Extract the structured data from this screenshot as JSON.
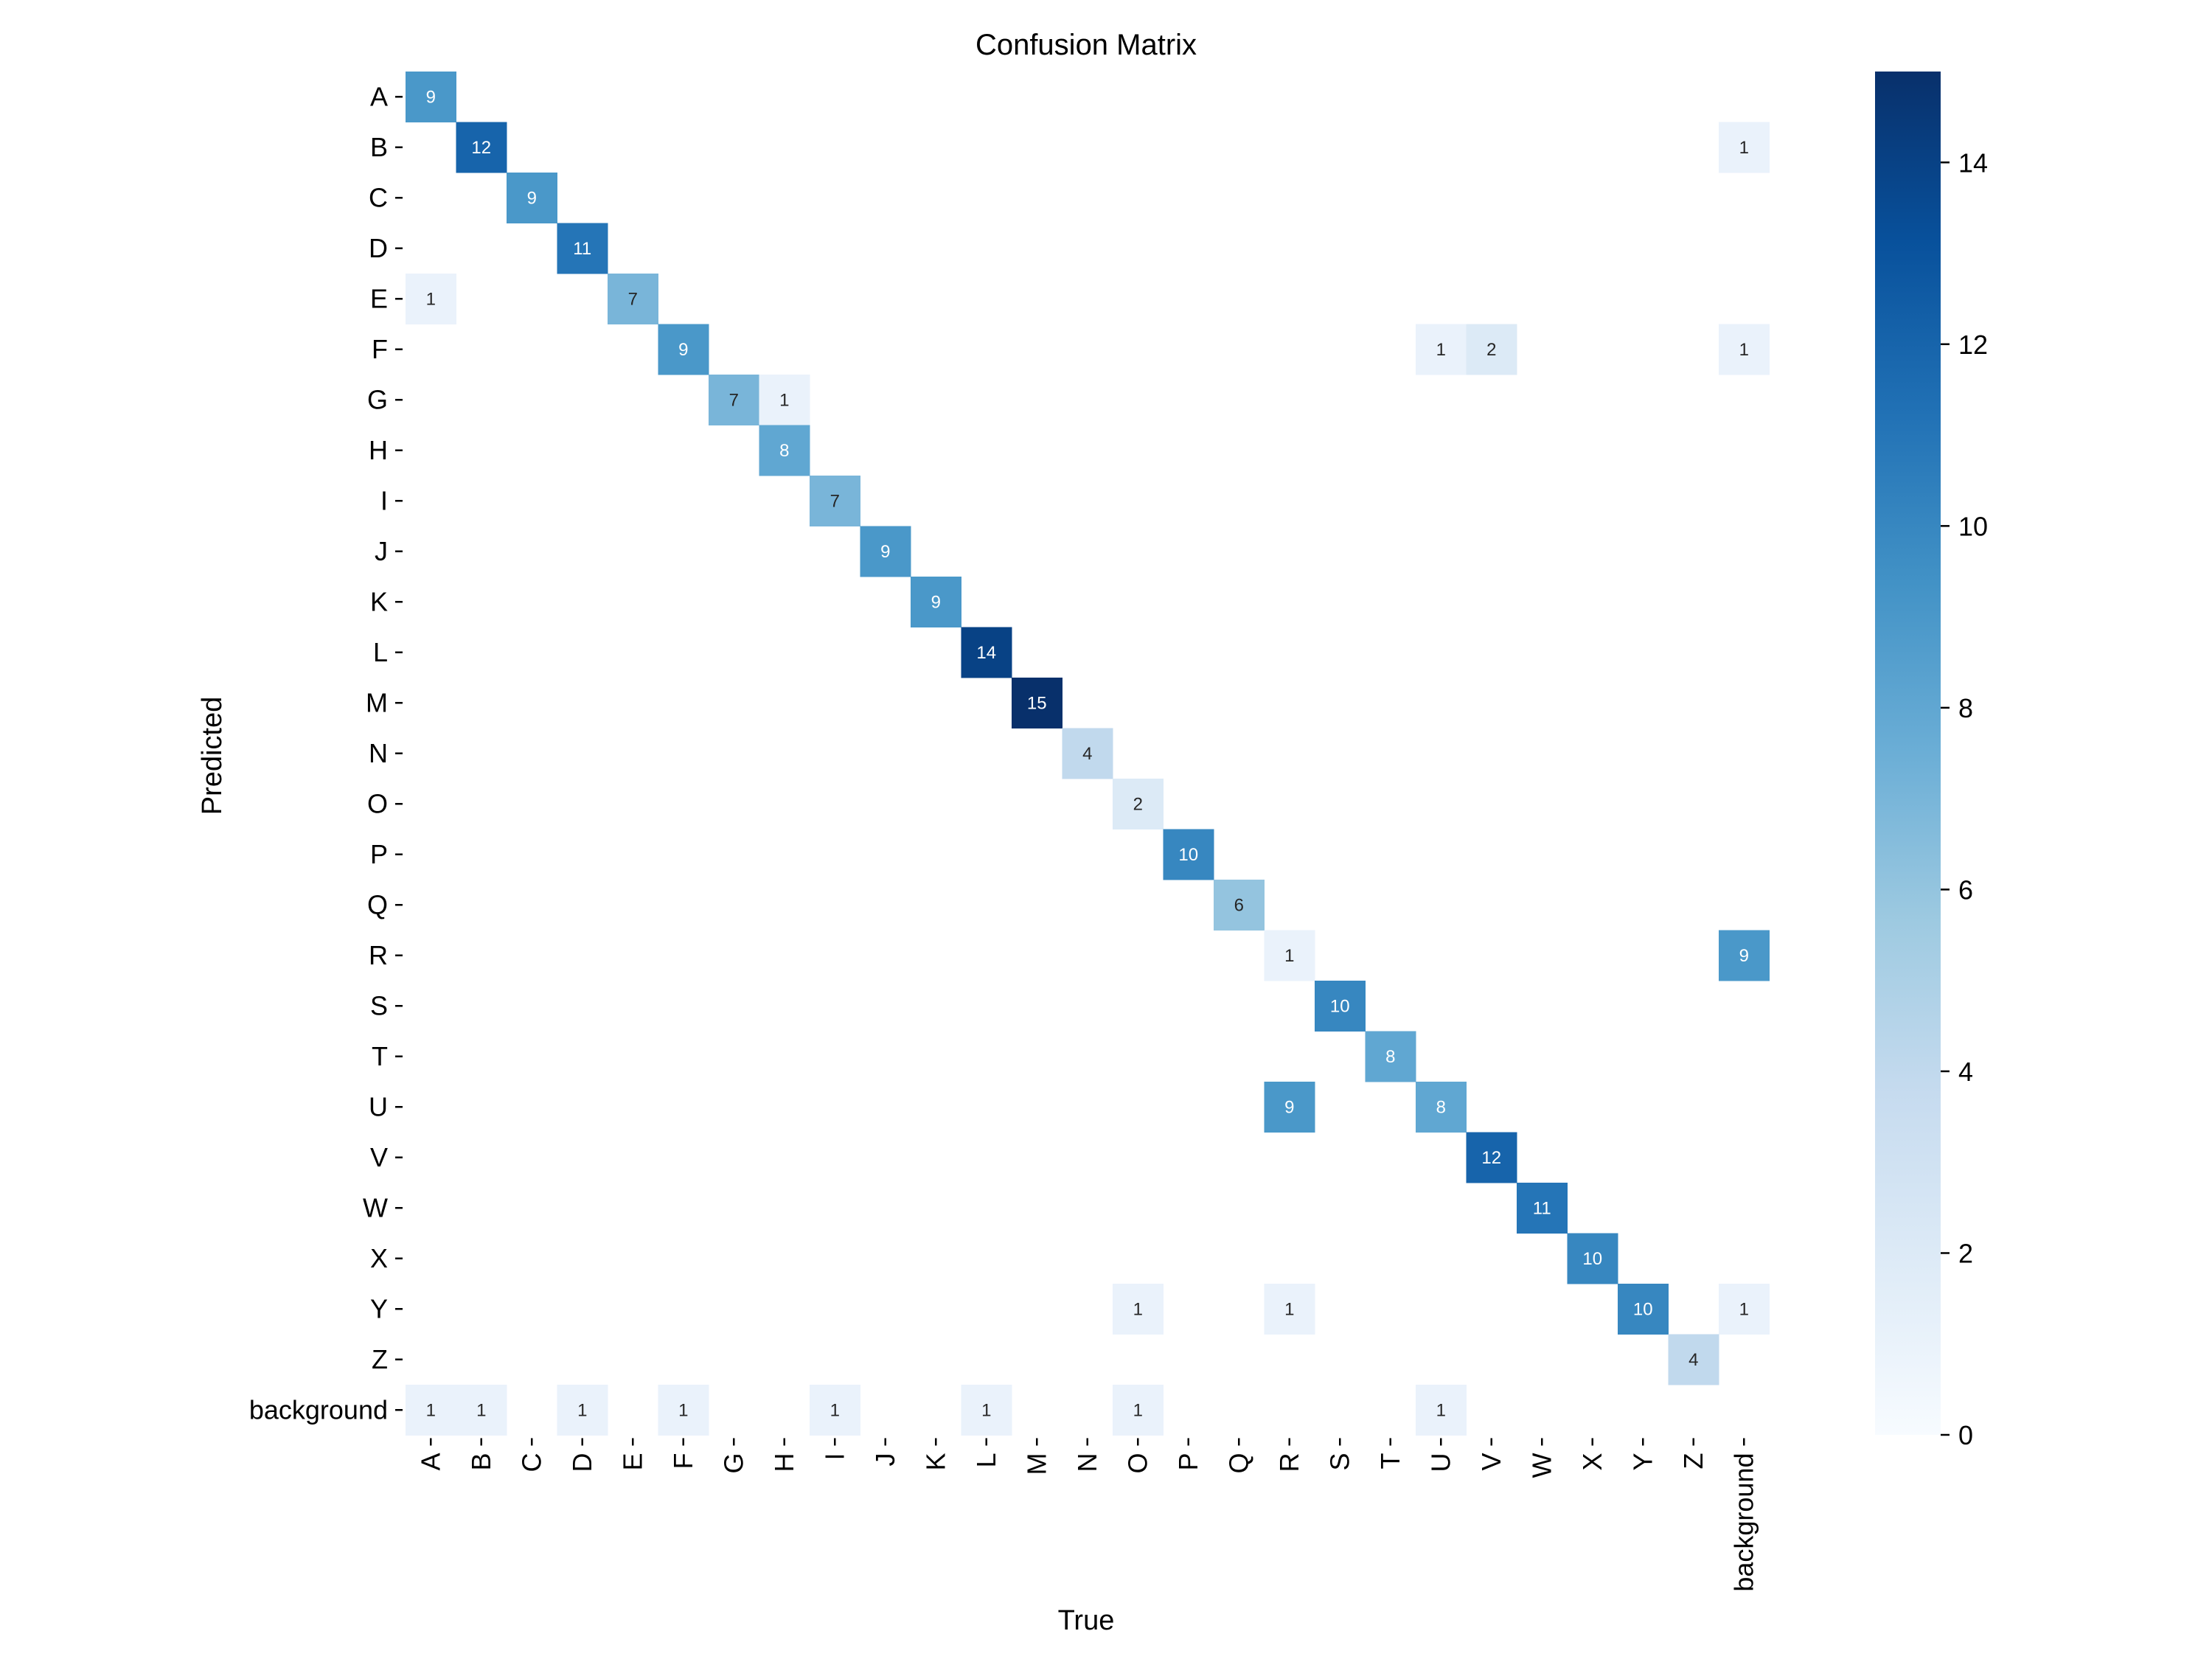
{
  "chart_data": {
    "type": "heatmap",
    "title": "Confusion Matrix",
    "xlabel": "True",
    "ylabel": "Predicted",
    "x_categories": [
      "A",
      "B",
      "C",
      "D",
      "E",
      "F",
      "G",
      "H",
      "I",
      "J",
      "K",
      "L",
      "M",
      "N",
      "O",
      "P",
      "Q",
      "R",
      "S",
      "T",
      "U",
      "V",
      "W",
      "X",
      "Y",
      "Z",
      "background"
    ],
    "y_categories": [
      "A",
      "B",
      "C",
      "D",
      "E",
      "F",
      "G",
      "H",
      "I",
      "J",
      "K",
      "L",
      "M",
      "N",
      "O",
      "P",
      "Q",
      "R",
      "S",
      "T",
      "U",
      "V",
      "W",
      "X",
      "Y",
      "Z",
      "background"
    ],
    "cells": [
      {
        "row": "A",
        "col": "A",
        "value": 9
      },
      {
        "row": "B",
        "col": "B",
        "value": 12
      },
      {
        "row": "B",
        "col": "background",
        "value": 1
      },
      {
        "row": "C",
        "col": "C",
        "value": 9
      },
      {
        "row": "D",
        "col": "D",
        "value": 11
      },
      {
        "row": "E",
        "col": "A",
        "value": 1
      },
      {
        "row": "E",
        "col": "E",
        "value": 7
      },
      {
        "row": "F",
        "col": "F",
        "value": 9
      },
      {
        "row": "F",
        "col": "U",
        "value": 1
      },
      {
        "row": "F",
        "col": "V",
        "value": 2
      },
      {
        "row": "F",
        "col": "background",
        "value": 1
      },
      {
        "row": "G",
        "col": "G",
        "value": 7
      },
      {
        "row": "G",
        "col": "H",
        "value": 1
      },
      {
        "row": "H",
        "col": "H",
        "value": 8
      },
      {
        "row": "I",
        "col": "I",
        "value": 7
      },
      {
        "row": "J",
        "col": "J",
        "value": 9
      },
      {
        "row": "K",
        "col": "K",
        "value": 9
      },
      {
        "row": "L",
        "col": "L",
        "value": 14
      },
      {
        "row": "M",
        "col": "M",
        "value": 15
      },
      {
        "row": "N",
        "col": "N",
        "value": 4
      },
      {
        "row": "O",
        "col": "O",
        "value": 2
      },
      {
        "row": "P",
        "col": "P",
        "value": 10
      },
      {
        "row": "Q",
        "col": "Q",
        "value": 6
      },
      {
        "row": "R",
        "col": "R",
        "value": 1
      },
      {
        "row": "R",
        "col": "background",
        "value": 9
      },
      {
        "row": "S",
        "col": "S",
        "value": 10
      },
      {
        "row": "T",
        "col": "T",
        "value": 8
      },
      {
        "row": "U",
        "col": "R",
        "value": 9
      },
      {
        "row": "U",
        "col": "U",
        "value": 8
      },
      {
        "row": "V",
        "col": "V",
        "value": 12
      },
      {
        "row": "W",
        "col": "W",
        "value": 11
      },
      {
        "row": "X",
        "col": "X",
        "value": 10
      },
      {
        "row": "Y",
        "col": "O",
        "value": 1
      },
      {
        "row": "Y",
        "col": "R",
        "value": 1
      },
      {
        "row": "Y",
        "col": "Y",
        "value": 10
      },
      {
        "row": "Y",
        "col": "background",
        "value": 1
      },
      {
        "row": "Z",
        "col": "Z",
        "value": 4
      },
      {
        "row": "background",
        "col": "A",
        "value": 1
      },
      {
        "row": "background",
        "col": "B",
        "value": 1
      },
      {
        "row": "background",
        "col": "D",
        "value": 1
      },
      {
        "row": "background",
        "col": "F",
        "value": 1
      },
      {
        "row": "background",
        "col": "I",
        "value": 1
      },
      {
        "row": "background",
        "col": "L",
        "value": 1
      },
      {
        "row": "background",
        "col": "O",
        "value": 1
      },
      {
        "row": "background",
        "col": "U",
        "value": 1
      }
    ],
    "zero_cells_shown": false,
    "colormap": "Blues",
    "colorbar": {
      "range": [
        0,
        15
      ],
      "ticks": [
        0,
        2,
        4,
        6,
        8,
        10,
        12,
        14
      ],
      "color_low": "#f7fbff",
      "color_high": "#08306b"
    }
  }
}
